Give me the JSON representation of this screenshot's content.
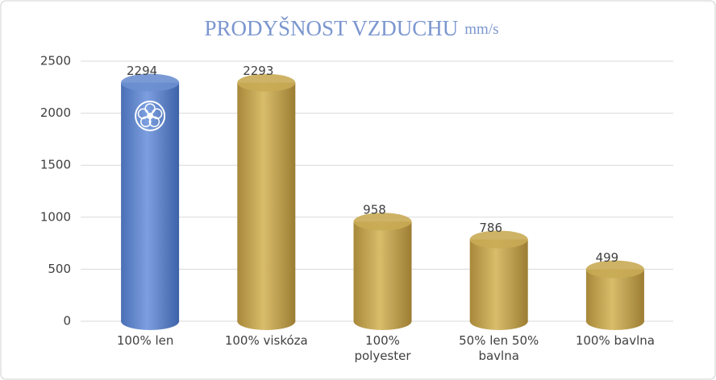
{
  "chart_data": {
    "type": "bar",
    "title": "PRODYŠNOST VZDUCHU",
    "unit": "mm/s",
    "categories": [
      "100% len",
      "100% viskóza",
      "100% polyester",
      "50% len 50% bavlna",
      "100% bavlna"
    ],
    "values": [
      2294,
      2293,
      958,
      786,
      499
    ],
    "colors": [
      "#6b8fd0",
      "#c9ab55",
      "#c9ab55",
      "#c9ab55",
      "#c9ab55"
    ],
    "ylim": [
      0,
      2500
    ],
    "yticks": [
      0,
      500,
      1000,
      1500,
      2000,
      2500
    ],
    "grid": true
  }
}
